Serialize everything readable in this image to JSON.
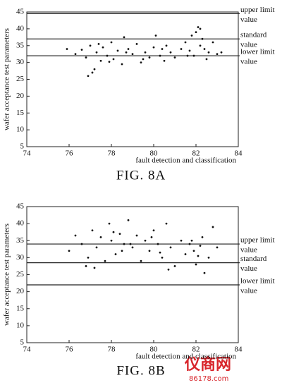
{
  "chart_data": [
    {
      "type": "scatter",
      "title": "FIG. 8A",
      "xlabel": "fault detection and classification",
      "ylabel": "wafer acceptance test parameters",
      "xlim": [
        74,
        84
      ],
      "ylim": [
        5,
        45
      ],
      "xticks": [
        74,
        76,
        78,
        80,
        82,
        84
      ],
      "yticks": [
        5,
        10,
        15,
        20,
        25,
        30,
        35,
        40,
        45
      ],
      "color": "#111111",
      "lines": [
        {
          "value": 44.5,
          "label": [
            "upper limit",
            "value"
          ]
        },
        {
          "value": 37,
          "label": [
            "standard",
            "value"
          ]
        },
        {
          "value": 32,
          "label": [
            "lower limit",
            "value"
          ]
        }
      ],
      "x": [
        75.9,
        76.3,
        76.6,
        76.8,
        77.0,
        77.1,
        77.3,
        77.5,
        77.6,
        77.8,
        78.0,
        78.1,
        78.3,
        78.5,
        78.6,
        78.8,
        79.0,
        79.2,
        79.4,
        79.6,
        79.8,
        80.0,
        80.1,
        80.3,
        80.5,
        80.6,
        80.8,
        81.0,
        81.3,
        81.5,
        81.7,
        81.8,
        81.9,
        82.0,
        82.1,
        82.2,
        82.3,
        82.4,
        82.5,
        82.6,
        82.8,
        83.0,
        83.2,
        77.2,
        77.9,
        78.7,
        79.5,
        80.4,
        81.6,
        82.2,
        76.9,
        77.4
      ],
      "y": [
        34,
        32.5,
        33.8,
        31.5,
        35,
        27,
        33,
        30.5,
        34.5,
        32,
        36,
        31,
        33.5,
        29.5,
        37.5,
        34,
        32.5,
        35.5,
        30,
        33,
        31.5,
        34.5,
        38,
        32,
        30.5,
        35,
        33,
        31.5,
        34,
        36,
        33.5,
        38,
        32,
        39,
        40.5,
        35,
        37,
        34,
        31,
        33,
        36,
        32.5,
        33,
        28,
        30.2,
        33,
        31,
        34,
        32,
        40,
        26,
        35.5
      ]
    },
    {
      "type": "scatter",
      "title": "FIG. 8B",
      "xlabel": "fault detection and classification",
      "ylabel": "wafer acceptance test parameters",
      "xlim": [
        74,
        84
      ],
      "ylim": [
        5,
        45
      ],
      "xticks": [
        74,
        76,
        78,
        80,
        82,
        84
      ],
      "yticks": [
        5,
        10,
        15,
        20,
        25,
        30,
        35,
        40,
        45
      ],
      "color": "#111111",
      "lines": [
        {
          "value": 34,
          "label": [
            "upper limit",
            "value"
          ]
        },
        {
          "value": 28.5,
          "label": [
            "standard",
            "value"
          ]
        },
        {
          "value": 22,
          "label": [
            "lower limit",
            "value"
          ]
        }
      ],
      "x": [
        76.0,
        76.3,
        76.6,
        76.9,
        77.1,
        77.3,
        77.5,
        77.7,
        77.9,
        78.0,
        78.2,
        78.4,
        78.6,
        78.8,
        79.0,
        79.2,
        79.4,
        79.6,
        79.8,
        80.0,
        80.2,
        80.4,
        80.6,
        80.8,
        81.0,
        81.3,
        81.5,
        81.7,
        81.9,
        82.0,
        82.2,
        82.4,
        82.6,
        82.8,
        83.0,
        77.2,
        78.1,
        78.5,
        79.9,
        80.3,
        81.8,
        82.1,
        76.8,
        78.9,
        80.7,
        82.3
      ],
      "y": [
        32,
        36.5,
        34,
        30,
        38,
        33,
        36,
        29,
        40,
        35,
        31,
        37,
        34,
        41,
        33,
        36.5,
        29,
        35,
        32,
        38,
        34,
        30,
        40,
        33,
        27.5,
        35,
        31,
        34,
        32,
        28,
        33.5,
        25.5,
        30,
        39,
        33,
        27,
        37.5,
        32,
        36,
        31.5,
        35,
        30.5,
        27.5,
        34,
        26.5,
        36
      ]
    }
  ],
  "watermark": {
    "name": "仪商网",
    "url": "86178.com"
  }
}
